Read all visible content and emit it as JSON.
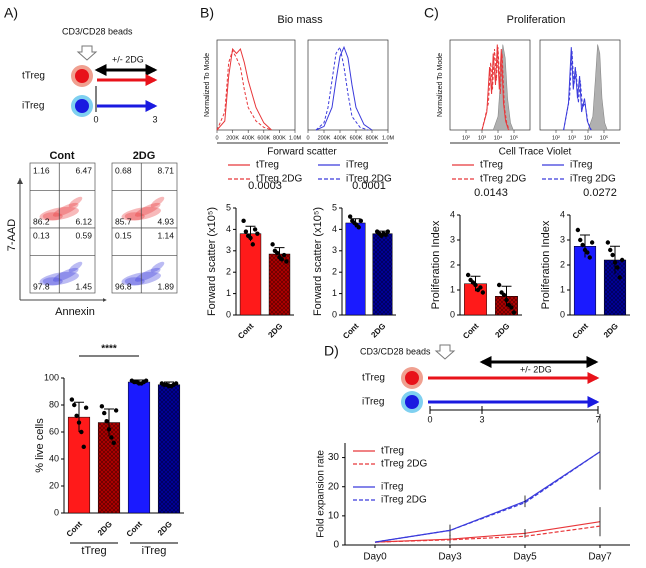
{
  "panel_labels": [
    "A)",
    "B)",
    "C)",
    "D)"
  ],
  "schematic_a": {
    "beads": "CD3/CD28 beads",
    "treatment": "+/- 2DG",
    "rows": [
      "tTreg",
      "iTreg"
    ],
    "ticks": [
      0,
      3
    ]
  },
  "flow": {
    "columns": [
      "Cont",
      "2DG"
    ],
    "ylabel": "7-AAD",
    "xlabel": "Annexin",
    "plots": [
      {
        "color": "#e8373a",
        "quadrants": [
          1.16,
          6.47,
          86.2,
          6.12
        ]
      },
      {
        "color": "#e8373a",
        "quadrants": [
          0.68,
          8.71,
          85.7,
          4.93
        ]
      },
      {
        "color": "#3b3bdc",
        "quadrants": [
          0.13,
          0.59,
          97.8,
          1.45
        ]
      },
      {
        "color": "#3b3bdc",
        "quadrants": [
          0.15,
          1.14,
          96.8,
          1.89
        ]
      }
    ]
  },
  "biomass": {
    "title": "Bio mass",
    "xlabel": "Forward scatter",
    "legend": [
      {
        "name": "tTreg",
        "color": "#e8373a",
        "dash": false
      },
      {
        "name": "iTreg",
        "color": "#3b3bdc",
        "dash": false
      },
      {
        "name": "tTreg 2DG",
        "color": "#e8373a",
        "dash": true
      },
      {
        "name": "iTreg 2DG",
        "color": "#3b3bdc",
        "dash": true
      }
    ]
  },
  "proliferation": {
    "title": "Proliferation",
    "xlabel": "Cell Trace Violet",
    "legend": [
      {
        "name": "tTreg",
        "color": "#e8373a",
        "dash": false
      },
      {
        "name": "iTreg",
        "color": "#3b3bdc",
        "dash": false
      },
      {
        "name": "tTreg 2DG",
        "color": "#e8373a",
        "dash": true
      },
      {
        "name": "iTreg 2DG",
        "color": "#3b3bdc",
        "dash": true
      }
    ]
  },
  "schematic_d": {
    "beads": "CD3/CD28 beads",
    "treatment": "+/- 2DG",
    "rows": [
      "tTreg",
      "iTreg"
    ],
    "ticks": [
      0,
      3,
      7
    ]
  },
  "chart_data": [
    {
      "type": "density",
      "ylabel": "Normalized To Mode",
      "xscale": "linear",
      "xlim": [
        0,
        1000000
      ],
      "ylim": [
        0,
        100
      ],
      "xticks": [
        0,
        {
          "value": 200000,
          "label": "200K"
        },
        {
          "value": 400000,
          "label": "400K"
        },
        {
          "value": 600000,
          "label": "600K"
        },
        {
          "value": 800000,
          "label": "800K"
        },
        {
          "value": 1000000,
          "label": "1.0M"
        }
      ],
      "series": [
        {
          "color": "#e8373a",
          "dash": false,
          "fill": false,
          "x": [
            0,
            100000,
            150000,
            200000,
            250000,
            300000,
            350000,
            400000,
            500000,
            600000,
            700000
          ],
          "values": [
            0,
            10,
            60,
            90,
            85,
            90,
            75,
            55,
            25,
            8,
            0
          ]
        },
        {
          "color": "#e8373a",
          "dash": true,
          "fill": false,
          "x": [
            0,
            100000,
            150000,
            200000,
            250000,
            300000,
            350000,
            400000,
            500000,
            600000,
            700000
          ],
          "values": [
            0,
            20,
            75,
            88,
            80,
            70,
            45,
            25,
            10,
            3,
            0
          ]
        }
      ]
    },
    {
      "type": "density",
      "xscale": "linear",
      "xlim": [
        0,
        1000000
      ],
      "ylim": [
        0,
        100
      ],
      "xticks": [
        0,
        {
          "value": 200000,
          "label": "200K"
        },
        {
          "value": 400000,
          "label": "400K"
        },
        {
          "value": 600000,
          "label": "600K"
        },
        {
          "value": 800000,
          "label": "800K"
        },
        {
          "value": 1000000,
          "label": "1.0M"
        }
      ],
      "series": [
        {
          "color": "#3b3bdc",
          "dash": false,
          "fill": false,
          "x": [
            100000,
            200000,
            300000,
            350000,
            400000,
            450000,
            500000,
            550000,
            600000,
            700000,
            800000
          ],
          "values": [
            0,
            4,
            25,
            55,
            82,
            92,
            80,
            50,
            25,
            6,
            0
          ]
        },
        {
          "color": "#3b3bdc",
          "dash": true,
          "fill": false,
          "x": [
            100000,
            200000,
            250000,
            300000,
            350000,
            400000,
            450000,
            500000,
            550000,
            650000,
            750000
          ],
          "values": [
            0,
            8,
            25,
            55,
            85,
            92,
            70,
            40,
            15,
            3,
            0
          ]
        }
      ]
    },
    {
      "type": "density",
      "ylabel": "Normalized To Mode",
      "xscale": "log",
      "xlim": [
        10,
        1000000
      ],
      "ylim": [
        0,
        100
      ],
      "xticks": [
        {
          "value": 100,
          "label": "10²"
        },
        {
          "value": 1000,
          "label": "10³"
        },
        {
          "value": 10000,
          "label": "10⁴"
        },
        {
          "value": 100000,
          "label": "10⁵"
        }
      ],
      "series": [
        {
          "color": "#b0b0b0",
          "dash": false,
          "fill": true,
          "x": [
            5000,
            10000,
            15000,
            20000,
            28000,
            40000,
            60000,
            90000
          ],
          "values": [
            0,
            15,
            60,
            95,
            80,
            35,
            8,
            0
          ]
        },
        {
          "color": "#e8373a",
          "dash": false,
          "fill": false,
          "x": [
            1000,
            2000,
            3000,
            4000,
            5000,
            7000,
            9000,
            12000,
            16000,
            22000,
            30000,
            45000
          ],
          "values": [
            0,
            20,
            70,
            40,
            85,
            50,
            95,
            45,
            90,
            30,
            10,
            0
          ]
        },
        {
          "color": "#e8373a",
          "dash": true,
          "fill": false,
          "x": [
            1000,
            2500,
            3500,
            4500,
            6000,
            8000,
            10000,
            14000,
            18000,
            25000,
            35000,
            50000
          ],
          "values": [
            0,
            30,
            75,
            45,
            90,
            55,
            92,
            40,
            85,
            25,
            8,
            0
          ]
        }
      ]
    },
    {
      "type": "density",
      "xscale": "log",
      "xlim": [
        10,
        1000000
      ],
      "ylim": [
        0,
        100
      ],
      "xticks": [
        {
          "value": 100,
          "label": "10²"
        },
        {
          "value": 1000,
          "label": "10³"
        },
        {
          "value": 10000,
          "label": "10⁴"
        },
        {
          "value": 100000,
          "label": "10⁵"
        }
      ],
      "series": [
        {
          "color": "#b0b0b0",
          "dash": false,
          "fill": true,
          "x": [
            10000,
            20000,
            30000,
            40000,
            55000,
            75000,
            110000,
            160000
          ],
          "values": [
            0,
            15,
            60,
            95,
            85,
            35,
            8,
            0
          ]
        },
        {
          "color": "#3b3bdc",
          "dash": false,
          "fill": false,
          "x": [
            300,
            600,
            900,
            1200,
            1600,
            2200,
            3000,
            4000,
            6000,
            9000,
            15000
          ],
          "values": [
            0,
            30,
            92,
            45,
            70,
            35,
            60,
            20,
            35,
            10,
            0
          ]
        },
        {
          "color": "#3b3bdc",
          "dash": true,
          "fill": false,
          "x": [
            300,
            700,
            1000,
            1300,
            1800,
            2500,
            3300,
            4500,
            6500,
            10000,
            16000
          ],
          "values": [
            0,
            35,
            88,
            50,
            65,
            30,
            55,
            25,
            30,
            8,
            0
          ]
        }
      ]
    },
    {
      "type": "bar",
      "ylabel": "Forward scatter (x10⁵)",
      "annotation": "0.0003",
      "categories": [
        "Cont",
        "2DG"
      ],
      "values": [
        3.8,
        2.85
      ],
      "errors": [
        0.35,
        0.3
      ],
      "colors": [
        "#ff1a1a",
        "#b00000"
      ],
      "hatch": [
        false,
        true
      ],
      "points": [
        [
          4.4,
          3.9,
          3.7,
          3.6,
          3.3,
          4.0,
          3.8
        ],
        [
          3.3,
          3.0,
          2.9,
          2.7,
          2.6,
          2.8,
          2.5
        ]
      ],
      "ylim": [
        0,
        5
      ],
      "yticks": [
        0,
        1,
        2,
        3,
        4,
        5
      ]
    },
    {
      "type": "bar",
      "ylabel": "Forward scatter (x10⁵)",
      "annotation": "0.0001",
      "categories": [
        "Cont",
        "2DG"
      ],
      "values": [
        4.3,
        3.8
      ],
      "errors": [
        0.2,
        0.12
      ],
      "colors": [
        "#1a1aff",
        "#00009a"
      ],
      "hatch": [
        false,
        true
      ],
      "points": [
        [
          4.6,
          4.4,
          4.3,
          4.2,
          4.1,
          4.4
        ],
        [
          3.9,
          3.8,
          3.7,
          3.8,
          3.75,
          3.9
        ]
      ],
      "ylim": [
        0,
        5
      ],
      "yticks": [
        0,
        1,
        2,
        3,
        4,
        5
      ]
    },
    {
      "type": "bar",
      "ylabel": "Proliferation Index",
      "annotation": "0.0143",
      "categories": [
        "Cont",
        "2DG"
      ],
      "values": [
        1.25,
        0.75
      ],
      "errors": [
        0.3,
        0.4
      ],
      "colors": [
        "#ff1a1a",
        "#b00000"
      ],
      "hatch": [
        false,
        true
      ],
      "points": [
        [
          1.6,
          1.4,
          1.3,
          1.2,
          1.0,
          1.1,
          0.9
        ],
        [
          1.2,
          0.9,
          0.8,
          0.6,
          0.4,
          0.3,
          0.1
        ]
      ],
      "ylim": [
        0,
        4
      ],
      "yticks": [
        0,
        1,
        2,
        3,
        4
      ]
    },
    {
      "type": "bar",
      "ylabel": "Proliferation Index",
      "annotation": "0.0272",
      "categories": [
        "Cont",
        "2DG"
      ],
      "values": [
        2.75,
        2.2
      ],
      "errors": [
        0.45,
        0.55
      ],
      "colors": [
        "#1a1aff",
        "#00009a"
      ],
      "hatch": [
        false,
        true
      ],
      "points": [
        [
          3.4,
          3.0,
          2.8,
          2.6,
          2.5,
          2.3,
          2.9
        ],
        [
          2.9,
          2.6,
          2.4,
          2.1,
          1.9,
          1.5,
          2.2
        ]
      ],
      "ylim": [
        0,
        4
      ],
      "yticks": [
        0,
        1,
        2,
        3,
        4
      ]
    },
    {
      "type": "bar",
      "ylabel": "% live cells",
      "annotation": "****",
      "categories": [
        "Cont",
        "2DG",
        "Cont",
        "2DG"
      ],
      "groups": [
        "tTreg",
        "iTreg"
      ],
      "values": [
        71,
        67,
        97,
        95
      ],
      "errors": [
        11,
        10,
        1.5,
        2
      ],
      "colors": [
        "#ff1a1a",
        "#b00000",
        "#1a1aff",
        "#00009a"
      ],
      "hatch": [
        false,
        true,
        false,
        true
      ],
      "points": [
        [
          84,
          80,
          72,
          67,
          60,
          49,
          78
        ],
        [
          79,
          74,
          68,
          62,
          56,
          52,
          76
        ],
        [
          98,
          97,
          97,
          96,
          96,
          97,
          98
        ],
        [
          96,
          95,
          95,
          94,
          94,
          95,
          96
        ]
      ],
      "ylim": [
        0,
        100
      ],
      "yticks": [
        0,
        20,
        40,
        60,
        80,
        100
      ]
    },
    {
      "type": "line",
      "ylabel": "Fold expansion rate",
      "categories": [
        "Day0",
        "Day3",
        "Day5",
        "Day7"
      ],
      "ylim": [
        0,
        35
      ],
      "yticks": [
        0,
        10,
        20,
        30
      ],
      "series": [
        {
          "name": "tTreg",
          "color": "#e8373a",
          "dash": false,
          "values": [
            1,
            2,
            4,
            8
          ],
          "errors": [
            0,
            1.5,
            1.5,
            5
          ]
        },
        {
          "name": "tTreg 2DG",
          "color": "#e8373a",
          "dash": true,
          "values": [
            1,
            1.8,
            3,
            6.5
          ]
        },
        {
          "name": "iTreg",
          "color": "#3b3bdc",
          "dash": false,
          "values": [
            1,
            5,
            15,
            32
          ],
          "errors": [
            0,
            2,
            2,
            13
          ]
        },
        {
          "name": "iTreg 2DG",
          "color": "#3b3bdc",
          "dash": true,
          "values": [
            1,
            5,
            14.5,
            32
          ]
        }
      ]
    }
  ]
}
